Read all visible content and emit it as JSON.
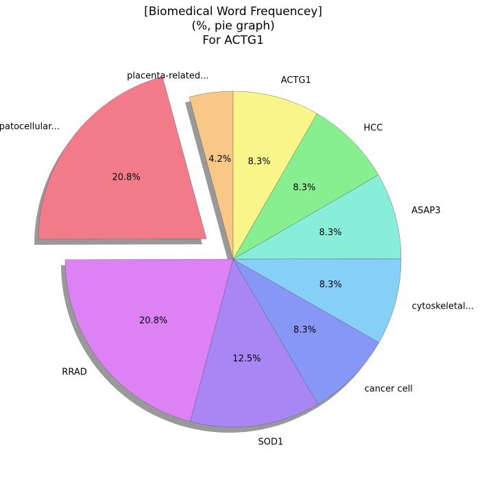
{
  "chart_data": {
    "type": "pie",
    "title": [
      "[Biomedical Word Frequencey]",
      "(%, pie graph)",
      "For ACTG1"
    ],
    "start_angle_deg": 90,
    "direction": "counterclockwise",
    "shadow": true,
    "slices": [
      {
        "label": "placenta-related...",
        "value": 4.2,
        "pct_label": "4.2%",
        "color": "#f8c887",
        "explode": 0
      },
      {
        "label": "hepatocellular...",
        "value": 20.8,
        "pct_label": "20.8%",
        "color": "#f27b8a",
        "explode": 0.2
      },
      {
        "label": "RRAD",
        "value": 20.8,
        "pct_label": "20.8%",
        "color": "#dd82f4",
        "explode": 0
      },
      {
        "label": "SOD1",
        "value": 12.5,
        "pct_label": "12.5%",
        "color": "#a887f4",
        "explode": 0
      },
      {
        "label": "cancer cell",
        "value": 8.3,
        "pct_label": "8.3%",
        "color": "#8797f6",
        "explode": 0
      },
      {
        "label": "cytoskeletal...",
        "value": 8.3,
        "pct_label": "8.3%",
        "color": "#86cff7",
        "explode": 0
      },
      {
        "label": "ASAP3",
        "value": 8.3,
        "pct_label": "8.3%",
        "color": "#88eeda",
        "explode": 0
      },
      {
        "label": "HCC",
        "value": 8.3,
        "pct_label": "8.3%",
        "color": "#87ef8f",
        "explode": 0
      },
      {
        "label": "ACTG1",
        "value": 8.3,
        "pct_label": "8.3%",
        "color": "#f9f589",
        "explode": 0
      }
    ]
  }
}
